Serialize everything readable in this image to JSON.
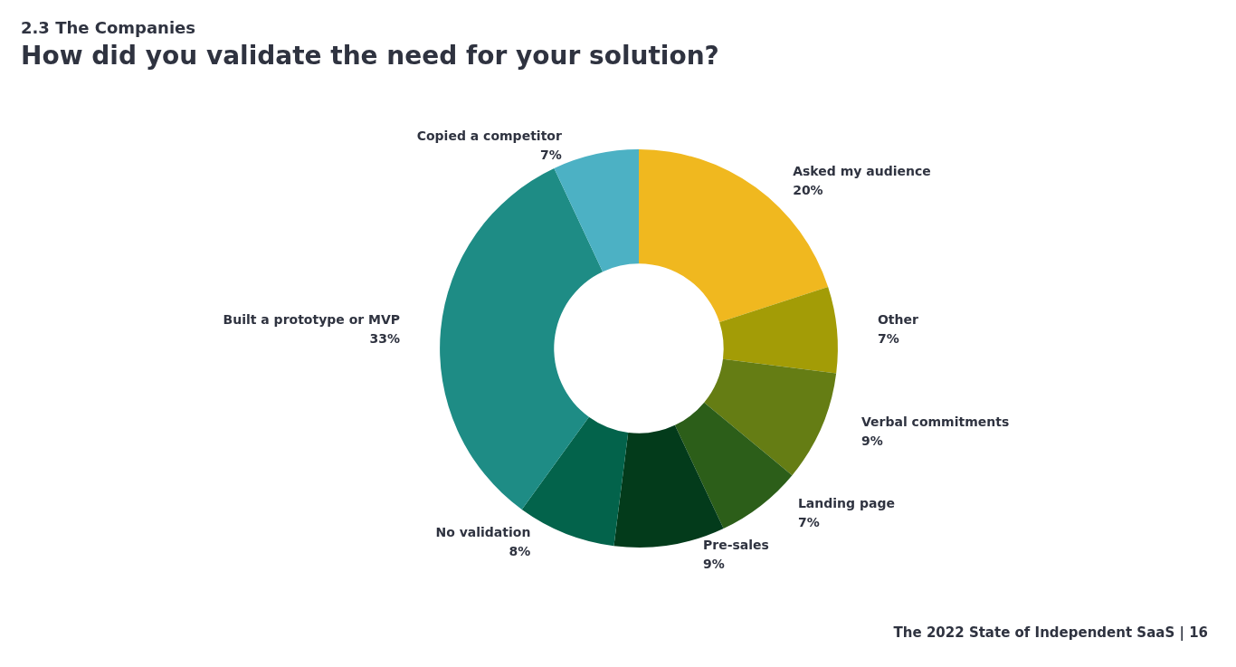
{
  "chart_data": {
    "type": "donut",
    "title": "How did you validate the need for your solution?",
    "subtitle": "2.3 The Companies",
    "categories": [
      "Asked my audience",
      "Other",
      "Verbal commitments",
      "Landing page",
      "Pre-sales",
      "No validation",
      "Built a prototype or MVP",
      "Copied a competitor"
    ],
    "values": [
      20,
      7,
      9,
      7,
      9,
      8,
      33,
      7
    ],
    "value_labels": [
      "20%",
      "7%",
      "9%",
      "7%",
      "9%",
      "8%",
      "33%",
      "7%"
    ],
    "colors": [
      "#f0b81f",
      "#a39c06",
      "#657d14",
      "#2c5e19",
      "#033b1b",
      "#03634b",
      "#1e8c85",
      "#4cb1c4"
    ],
    "legend": false,
    "annotations": [
      "The 2022 State of Independent SaaS | 16"
    ]
  }
}
